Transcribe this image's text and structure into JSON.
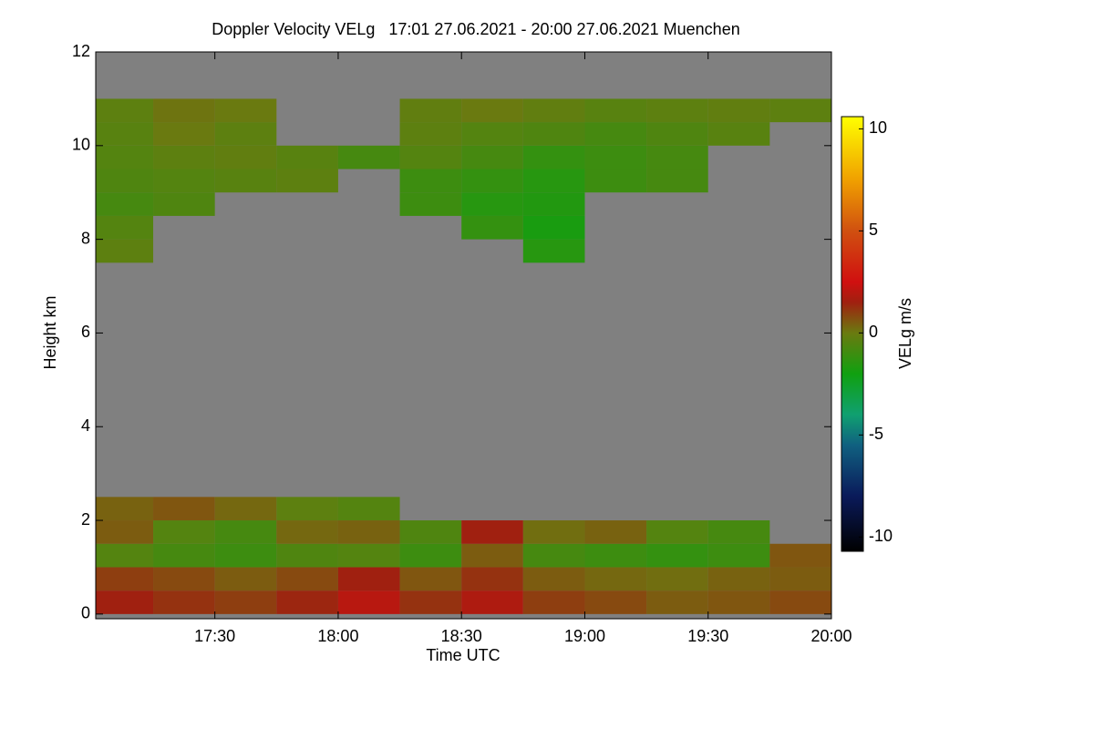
{
  "chart_data": {
    "type": "heatmap",
    "title": "Doppler Velocity VELg   17:01 27.06.2021 - 20:00 27.06.2021 Muenchen",
    "x_label": "Time UTC",
    "y_label": "Height km",
    "colorbar_label": "VELg m/s",
    "xlim": [
      17.017,
      20.0
    ],
    "xticks": [
      {
        "value": 17.5,
        "label": "17:30"
      },
      {
        "value": 18.0,
        "label": "18:00"
      },
      {
        "value": 18.5,
        "label": "18:30"
      },
      {
        "value": 19.0,
        "label": "19:00"
      },
      {
        "value": 19.5,
        "label": "19:30"
      },
      {
        "value": 20.0,
        "label": "20:00"
      }
    ],
    "ylim": [
      -0.1,
      12
    ],
    "yticks": [
      0,
      2,
      4,
      6,
      8,
      10,
      12
    ],
    "clim": [
      -10.7,
      10.6
    ],
    "cticks": [
      -10,
      -5,
      0,
      5,
      10
    ],
    "background": "#808080",
    "colorscale": [
      [
        -10.7,
        "#000000"
      ],
      [
        -8,
        "#0a1a5a"
      ],
      [
        -5.5,
        "#106080"
      ],
      [
        -4,
        "#10a070"
      ],
      [
        -2,
        "#10a010"
      ],
      [
        0,
        "#6a7a10"
      ],
      [
        1.5,
        "#a02010"
      ],
      [
        2.5,
        "#d01010"
      ],
      [
        5,
        "#d05010"
      ],
      [
        7.5,
        "#f0a000"
      ],
      [
        10.6,
        "#ffff00"
      ]
    ],
    "xbins": [
      17.017,
      17.25,
      17.5,
      17.75,
      18.0,
      18.25,
      18.5,
      18.75,
      19.0,
      19.25,
      19.5,
      19.75,
      20.0
    ],
    "ybins": [
      0,
      0.5,
      1,
      1.5,
      2,
      2.5,
      3,
      3.5,
      4,
      4.5,
      5,
      5.5,
      6,
      6.5,
      7,
      7.5,
      8,
      8.5,
      9,
      9.5,
      10,
      10.5,
      11,
      11.5,
      12
    ],
    "z": [
      [
        1.5,
        1.2,
        1.0,
        1.4,
        2.0,
        1.2,
        1.8,
        1.0,
        0.8,
        0.5,
        0.6,
        0.8
      ],
      [
        1.0,
        0.8,
        0.5,
        0.8,
        1.5,
        0.6,
        1.2,
        0.5,
        0.3,
        0.2,
        0.4,
        0.5
      ],
      [
        -0.5,
        -0.8,
        -1.0,
        -0.6,
        -0.5,
        -1.0,
        0.5,
        -0.8,
        -1.0,
        -1.2,
        -1.0,
        0.6
      ],
      [
        0.5,
        -0.5,
        -0.8,
        0.3,
        0.4,
        -0.6,
        1.5,
        0.2,
        0.4,
        -0.5,
        -0.8,
        null
      ],
      [
        0.4,
        0.6,
        0.3,
        -0.3,
        -0.5,
        null,
        null,
        null,
        null,
        null,
        null,
        null
      ],
      [
        null,
        null,
        null,
        null,
        null,
        null,
        null,
        null,
        null,
        null,
        null,
        null
      ],
      [
        null,
        null,
        null,
        null,
        null,
        null,
        null,
        null,
        null,
        null,
        null,
        null
      ],
      [
        null,
        null,
        null,
        null,
        null,
        null,
        null,
        null,
        null,
        null,
        null,
        null
      ],
      [
        null,
        null,
        null,
        null,
        null,
        null,
        null,
        null,
        null,
        null,
        null,
        null
      ],
      [
        null,
        null,
        null,
        null,
        null,
        null,
        null,
        null,
        null,
        null,
        null,
        null
      ],
      [
        null,
        null,
        null,
        null,
        null,
        null,
        null,
        null,
        null,
        null,
        null,
        null
      ],
      [
        null,
        null,
        null,
        null,
        null,
        null,
        null,
        null,
        null,
        null,
        null,
        null
      ],
      [
        null,
        null,
        null,
        null,
        null,
        null,
        null,
        null,
        null,
        null,
        null,
        null
      ],
      [
        null,
        null,
        null,
        null,
        null,
        null,
        null,
        null,
        null,
        null,
        null,
        null
      ],
      [
        null,
        null,
        null,
        null,
        null,
        null,
        null,
        null,
        null,
        null,
        null,
        null
      ],
      [
        -0.3,
        null,
        null,
        null,
        null,
        null,
        null,
        -1.5,
        null,
        null,
        null,
        null
      ],
      [
        -0.5,
        null,
        null,
        null,
        null,
        null,
        -1.2,
        -1.8,
        null,
        null,
        null,
        null
      ],
      [
        -0.8,
        -0.6,
        null,
        null,
        null,
        -1.0,
        -1.5,
        -1.6,
        null,
        null,
        null,
        null
      ],
      [
        -0.6,
        -0.5,
        -0.4,
        -0.3,
        null,
        -1.0,
        -1.2,
        -1.5,
        -1.0,
        -0.8,
        null,
        null
      ],
      [
        -0.5,
        -0.3,
        -0.2,
        -0.4,
        -0.8,
        -0.5,
        -0.8,
        -1.2,
        -1.0,
        -0.8,
        null,
        null
      ],
      [
        -0.4,
        0.0,
        -0.3,
        null,
        null,
        -0.3,
        -0.5,
        -0.6,
        -0.8,
        -0.6,
        -0.4,
        null
      ],
      [
        -0.3,
        0.1,
        0.0,
        null,
        null,
        -0.2,
        0.0,
        -0.2,
        -0.4,
        -0.3,
        -0.2,
        -0.3
      ],
      [
        null,
        null,
        null,
        null,
        null,
        null,
        null,
        null,
        null,
        null,
        null,
        null
      ],
      [
        null,
        null,
        null,
        null,
        null,
        null,
        null,
        null,
        null,
        null,
        null,
        null
      ]
    ]
  }
}
